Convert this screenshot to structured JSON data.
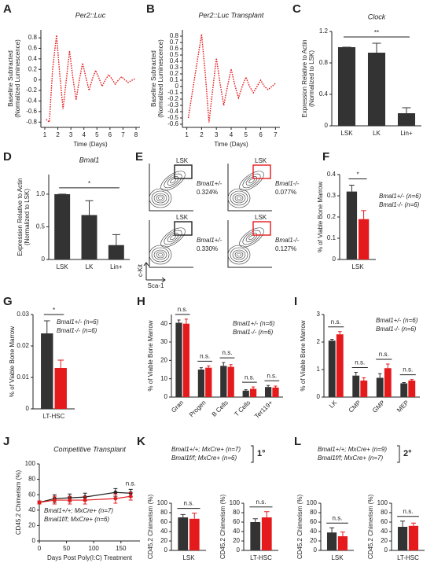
{
  "chart_data": [
    {
      "panel": "A",
      "type": "line",
      "title": "Per2::Luc",
      "title_color": "#e41a1c",
      "ylabel": [
        "Baseline Subtracted",
        "(Normalized Luminescence)"
      ],
      "xlabel": "Time (Days)",
      "x": [
        1.1,
        1.35,
        1.6,
        1.9,
        2.15,
        2.4,
        2.65,
        2.9,
        3.15,
        3.4,
        3.65,
        3.9,
        4.15,
        4.4,
        4.65,
        4.9,
        5.15,
        5.4,
        5.65,
        5.9,
        6.15,
        6.4,
        6.65,
        6.9,
        7.15,
        7.4,
        7.65,
        7.9
      ],
      "values": [
        -0.75,
        -0.8,
        0.2,
        0.85,
        0.1,
        -0.55,
        0.0,
        0.55,
        0.05,
        -0.38,
        0.0,
        0.32,
        0.05,
        -0.2,
        0.02,
        0.18,
        0.04,
        -0.12,
        0.0,
        0.1,
        0.02,
        -0.08,
        0.0,
        0.06,
        0.0,
        -0.05,
        -0.01,
        0.02
      ],
      "color": "#e41a1c",
      "xlim": [
        0.7,
        8.3
      ],
      "ylim": [
        -0.9,
        0.95
      ],
      "xticks": [
        1,
        2,
        3,
        4,
        5,
        6,
        7,
        8
      ],
      "yticks": [
        -0.8,
        -0.6,
        -0.4,
        -0.2,
        0,
        0.2,
        0.4,
        0.6,
        0.8
      ]
    },
    {
      "panel": "B",
      "type": "line",
      "title": "Per2::Luc Transplant",
      "title_color": "#e41a1c",
      "ylabel": [
        "Baseline Subtracted",
        "(Normalized Luminescence)"
      ],
      "xlabel": "Time (Days)",
      "x": [
        1.1,
        1.5,
        2.0,
        2.25,
        2.5,
        2.75,
        3.0,
        3.25,
        3.5,
        3.75,
        4.0,
        4.25,
        4.5,
        4.75,
        5.0,
        5.25,
        5.5,
        5.75,
        6.0,
        6.25,
        6.5,
        6.75,
        7.0
      ],
      "values": [
        -0.5,
        0.1,
        0.83,
        0.2,
        -0.57,
        -0.05,
        0.45,
        0.05,
        -0.3,
        0.0,
        0.28,
        0.02,
        -0.18,
        0.0,
        0.15,
        0.0,
        -0.1,
        0.0,
        0.1,
        0.0,
        -0.05,
        0.0,
        0.05
      ],
      "color": "#e41a1c",
      "xlim": [
        0.7,
        7.3
      ],
      "ylim": [
        -0.65,
        0.9
      ],
      "xticks": [
        1,
        2,
        3,
        4,
        5,
        6,
        7
      ],
      "yticks": [
        -0.6,
        -0.5,
        -0.4,
        -0.3,
        -0.2,
        -0.1,
        0,
        0.1,
        0.2,
        0.3,
        0.4,
        0.5,
        0.6,
        0.7,
        0.8
      ]
    },
    {
      "panel": "C",
      "type": "bar",
      "title": "Clock",
      "ylabel": [
        "Expression Relative to Actin",
        "(Normalized to LSK)"
      ],
      "categories": [
        "LSK",
        "LK",
        "Lin+"
      ],
      "values": [
        1,
        0.93,
        0.16
      ],
      "errors": [
        0,
        0.12,
        0.07
      ],
      "color": "#333333",
      "ylim": [
        0,
        1.2
      ],
      "yticks": [
        0,
        0.4,
        0.8,
        1.2
      ],
      "significance": "**"
    },
    {
      "panel": "D",
      "type": "bar",
      "title": "Bmal1",
      "ylabel": [
        "Expression Relative to Actin",
        "(Normalized to LSK)"
      ],
      "categories": [
        "LSK",
        "LK",
        "Lin+"
      ],
      "values": [
        1,
        0.68,
        0.22
      ],
      "errors": [
        0,
        0.22,
        0.16
      ],
      "color": "#333333",
      "ylim": [
        0,
        1.3
      ],
      "yticks": [
        0,
        0.5,
        {
          "value": 1,
          "label": "1.0"
        }
      ],
      "significance": "*"
    },
    {
      "panel": "F",
      "type": "bar",
      "ylabel": [
        "% of Viable Bone Marrow"
      ],
      "categories": [
        "LSK"
      ],
      "series": [
        {
          "name": "Bmal1+/- (n=6)",
          "color": "#333333",
          "values": [
            0.32
          ],
          "errors": [
            0.03
          ]
        },
        {
          "name": "Bmal1-/- (n=6)",
          "color": "#e41a1c",
          "values": [
            0.19
          ],
          "errors": [
            0.04
          ]
        }
      ],
      "ylim": [
        0,
        0.4
      ],
      "yticks": [
        0,
        0.1,
        0.2,
        0.3,
        0.4
      ],
      "significance": "*"
    },
    {
      "panel": "G",
      "type": "bar",
      "ylabel": [
        "% of Viable Bone Marrow"
      ],
      "categories": [
        "LT-HSC"
      ],
      "series": [
        {
          "name": "Bmal1+/- (n=6)",
          "color": "#333333",
          "values": [
            0.024
          ],
          "errors": [
            0.004
          ]
        },
        {
          "name": "Bmal1-/- (n=6)",
          "color": "#e41a1c",
          "values": [
            0.013
          ],
          "errors": [
            0.0025
          ]
        }
      ],
      "ylim": [
        0,
        0.03
      ],
      "yticks": [
        0,
        0.01,
        0.02,
        0.03
      ],
      "significance": "*"
    },
    {
      "panel": "H",
      "type": "bar",
      "ylabel": [
        "% of Viable Bone Marrow"
      ],
      "categories": [
        "Gran",
        "Progen",
        "B Cells",
        "T Cells",
        "Ter119+"
      ],
      "rotate_labels": true,
      "series": [
        {
          "name": "Bmal1+/- (n=6)",
          "color": "#333333",
          "values": [
            40.5,
            15,
            17,
            3.5,
            5.5
          ],
          "errors": [
            1.5,
            1,
            1.8,
            0.5,
            0.8
          ]
        },
        {
          "name": "Bmal1-/- (n=6)",
          "color": "#e41a1c",
          "values": [
            40,
            16,
            16.5,
            4.5,
            5.2
          ],
          "errors": [
            2.5,
            1,
            1.2,
            1,
            0.8
          ]
        }
      ],
      "ylim": [
        0,
        45
      ],
      "yticks": [
        0,
        10,
        20,
        30,
        40
      ],
      "significance": [
        "n.s.",
        "n.s.",
        "n.s.",
        "n.s.",
        "n.s."
      ]
    },
    {
      "panel": "I",
      "type": "bar",
      "ylabel": [
        "% of Viable Bone Marrow"
      ],
      "categories": [
        "LK",
        "CMP",
        "GMP",
        "MEP"
      ],
      "rotate_labels": true,
      "series": [
        {
          "name": "Bmal1+/- (n=6)",
          "color": "#333333",
          "values": [
            2.05,
            0.78,
            0.7,
            0.5
          ],
          "errors": [
            0.05,
            0.12,
            0.15,
            0.03
          ]
        },
        {
          "name": "Bmal1-/- (n=6)",
          "color": "#e41a1c",
          "values": [
            2.28,
            0.6,
            1.05,
            0.6
          ],
          "errors": [
            0.1,
            0.1,
            0.15,
            0.04
          ]
        }
      ],
      "ylim": [
        0,
        3
      ],
      "yticks": [
        0,
        1,
        2,
        3
      ],
      "significance": [
        "n.s.",
        "n.s.",
        "n.s.",
        "n.s."
      ]
    },
    {
      "panel": "J",
      "type": "line",
      "title": "Competitive Transplant",
      "ylabel": [
        "CD45.2 Chimerism (%)"
      ],
      "xlabel": "Days Post Poly(I:C) Treatment",
      "x": [
        0,
        28,
        56,
        84,
        140,
        168
      ],
      "series": [
        {
          "name": "Bmal1+/+; MxCre+ (n=7)",
          "color": "#222222",
          "values": [
            50,
            55,
            56,
            57,
            63,
            62
          ],
          "errors": [
            2,
            5,
            5,
            5,
            5,
            5
          ]
        },
        {
          "name": "Bmal1f/f; MxCre+ (n=6)",
          "color": "#e41a1c",
          "values": [
            50,
            53,
            53,
            53,
            55,
            58
          ],
          "errors": [
            2,
            5,
            5,
            5,
            6,
            5
          ]
        }
      ],
      "xlim": [
        0,
        185
      ],
      "ylim": [
        0,
        100
      ],
      "xticks": [
        0,
        50,
        100,
        150
      ],
      "yticks": [
        0,
        20,
        40,
        60,
        80,
        100
      ],
      "significance": "n.s."
    },
    {
      "panel": "K",
      "type": "bar",
      "split": true,
      "round": "1°",
      "ylabel": [
        "CD45.2 Chimerism (%)"
      ],
      "categories": [
        "LSK",
        "LT-HSC"
      ],
      "series": [
        {
          "name": "Bmal1+/+; MxCre+ (n=7)",
          "color": "#333333",
          "values": [
            70,
            60
          ],
          "errors": [
            6,
            7
          ]
        },
        {
          "name": "Bmal1f/f; MxCre+ (n=6)",
          "color": "#e41a1c",
          "values": [
            67,
            70
          ],
          "errors": [
            12,
            12
          ]
        }
      ],
      "ylim": [
        0,
        100
      ],
      "yticks": [
        0,
        20,
        40,
        60,
        80,
        100
      ],
      "significance": [
        "n.s.",
        "n.s."
      ]
    },
    {
      "panel": "L",
      "type": "bar",
      "split": true,
      "round": "2°",
      "ylabel": [
        "CD45.2 Chimerism (%)"
      ],
      "categories": [
        "LSK",
        "LT-HSC"
      ],
      "series": [
        {
          "name": "Bmal1+/+; MxCre+ (n=9)",
          "color": "#333333",
          "values": [
            38,
            50
          ],
          "errors": [
            10,
            12
          ]
        },
        {
          "name": "Bmal1f/f; MxCre+ (n=7)",
          "color": "#e41a1c",
          "values": [
            30,
            52
          ],
          "errors": [
            9,
            6
          ]
        }
      ],
      "ylim": [
        0,
        100
      ],
      "yticks": [
        0,
        20,
        40,
        60,
        80,
        100
      ],
      "significance": [
        "n.s.",
        "n.s."
      ]
    }
  ],
  "flow": {
    "panel": "E",
    "xlabel": "Sca-1",
    "ylabel": "c-Kit",
    "plots": [
      {
        "gate": "LSK",
        "genotype": "Bmal1+/-",
        "percent": "0.324%",
        "color": "#222222"
      },
      {
        "gate": "LSK",
        "genotype": "Bmal1-/-",
        "percent": "0.077%",
        "color": "#e41a1c"
      },
      {
        "gate": "LSK",
        "genotype": "Bmal1+/-",
        "percent": "0.330%",
        "color": "#222222"
      },
      {
        "gate": "LSK",
        "genotype": "Bmal1-/-",
        "percent": "0.127%",
        "color": "#e41a1c"
      }
    ]
  }
}
